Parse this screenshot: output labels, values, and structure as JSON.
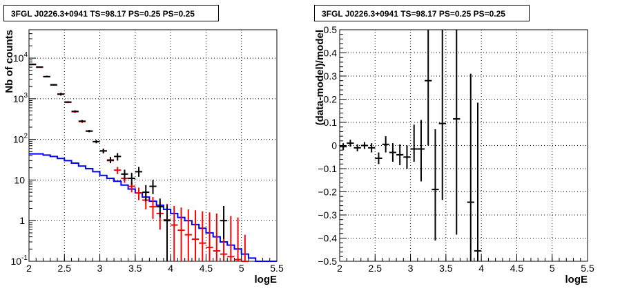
{
  "chart_data": [
    {
      "type": "line",
      "title": "3FGL J0226.3+0941 TS=98.17 PS=0.25 PS=0.25",
      "xlabel": "logE",
      "ylabel": "Nb of counts",
      "xlim": [
        2,
        5.5
      ],
      "ylim": [
        0.1,
        50000
      ],
      "yscale": "log",
      "grid": true,
      "x_ticks": [
        "2",
        "2.5",
        "3",
        "3.5",
        "4",
        "4.5",
        "5",
        "5.5"
      ],
      "y_ticks": [
        {
          "value": 0.1,
          "label": "10",
          "exp": "-1"
        },
        {
          "value": 1,
          "label": "1",
          "exp": ""
        },
        {
          "value": 10,
          "label": "10",
          "exp": ""
        },
        {
          "value": 100,
          "label": "10",
          "exp": "2"
        },
        {
          "value": 1000,
          "label": "10",
          "exp": "3"
        },
        {
          "value": 10000,
          "label": "10",
          "exp": "4"
        }
      ],
      "series": [
        {
          "color": "#0000ff",
          "style": "step",
          "bin_edges": [
            2.0,
            2.1,
            2.2,
            2.3,
            2.4,
            2.5,
            2.6,
            2.7,
            2.8,
            2.9,
            3.0,
            3.1,
            3.2,
            3.3,
            3.4,
            3.5,
            3.6,
            3.7,
            3.8,
            3.9,
            4.0,
            4.1,
            4.2,
            4.3,
            4.4,
            4.5,
            4.6,
            4.7,
            4.8,
            4.9,
            5.0,
            5.1,
            5.2,
            5.3,
            5.4,
            5.5
          ],
          "values": [
            44,
            44,
            41,
            38,
            34,
            30,
            26,
            22,
            19,
            16,
            13,
            11,
            9.3,
            7.5,
            6.0,
            4.8,
            3.8,
            3.0,
            2.4,
            1.9,
            1.5,
            1.2,
            1.0,
            0.8,
            0.65,
            0.5,
            0.4,
            0.3,
            0.25,
            0.2,
            0.15,
            0.12,
            0.1,
            0.1,
            0.1
          ]
        },
        {
          "color": "#ff0000",
          "style": "errorbar",
          "x": [
            2.05,
            2.15,
            2.25,
            2.35,
            2.45,
            2.55,
            2.65,
            2.75,
            2.85,
            2.95,
            3.05,
            3.15,
            3.25,
            3.35,
            3.45,
            3.55,
            3.65,
            3.75,
            3.85,
            3.95,
            4.05,
            4.15,
            4.25,
            4.35,
            4.45,
            4.55,
            4.65,
            4.75,
            4.85,
            4.95,
            5.05
          ],
          "y": [
            7000,
            6000,
            3500,
            2200,
            1300,
            820,
            480,
            275,
            160,
            88,
            52,
            30,
            17.5,
            11,
            7.0,
            4.8,
            3.2,
            2.2,
            1.5,
            1.05,
            0.78,
            0.58,
            0.45,
            0.35,
            0.28,
            0.22,
            0.18,
            0.15,
            0.13,
            0.11,
            0.1
          ],
          "y_low": [
            6800,
            5800,
            3400,
            2100,
            1200,
            780,
            450,
            255,
            150,
            82,
            45,
            26,
            14,
            8.5,
            5.0,
            3.2,
            1.9,
            1.1,
            0.6,
            0.2,
            0.1,
            0.1,
            0.1,
            0.1,
            0.1,
            0.1,
            0.1,
            0.1,
            0.1,
            0.1,
            0.1
          ],
          "y_high": [
            7300,
            6200,
            3700,
            2300,
            1400,
            860,
            510,
            300,
            170,
            96,
            59,
            35,
            21,
            14,
            9.0,
            6.5,
            5.0,
            3.8,
            3.0,
            2.6,
            2.3,
            2.1,
            1.9,
            1.8,
            1.7,
            1.6,
            1.5,
            1.4,
            1.3,
            1.2,
            0.45
          ]
        },
        {
          "color": "#000000",
          "style": "errorbar",
          "x": [
            2.05,
            2.15,
            2.25,
            2.35,
            2.45,
            2.55,
            2.65,
            2.75,
            2.85,
            2.95,
            3.05,
            3.15,
            3.25,
            3.35,
            3.45,
            3.55,
            3.65,
            3.75,
            3.85,
            3.95,
            4.75
          ],
          "y": [
            7000,
            6000,
            3500,
            2200,
            1300,
            830,
            490,
            280,
            160,
            88,
            52,
            31,
            38,
            14,
            11,
            16,
            5,
            7,
            2.2,
            1.0,
            1.0
          ],
          "y_low": [
            6800,
            5800,
            3400,
            2100,
            1200,
            790,
            460,
            260,
            150,
            80,
            46,
            26,
            30,
            10,
            7.5,
            12,
            3,
            4.5,
            1.2,
            0.1,
            0.35
          ],
          "y_high": [
            7300,
            6200,
            3700,
            2300,
            1400,
            870,
            520,
            300,
            170,
            97,
            59,
            37,
            46,
            18,
            15,
            21,
            7.5,
            10,
            3.5,
            2.4,
            2.3
          ]
        }
      ]
    },
    {
      "type": "scatter",
      "title": "3FGL J0226.3+0941 TS=98.17 PS=0.25 PS=0.25",
      "xlabel": "logE",
      "ylabel": "(data-model)/model",
      "xlim": [
        2,
        5.5
      ],
      "ylim": [
        -0.5,
        0.5
      ],
      "grid": true,
      "x_ticks": [
        "2",
        "2.5",
        "3",
        "3.5",
        "4",
        "4.5",
        "5",
        "5.5"
      ],
      "y_ticks": [
        "-0.5",
        "-0.4",
        "-0.3",
        "-0.2",
        "-0.1",
        "0",
        "0.1",
        "0.2",
        "0.3",
        "0.4",
        "0.5"
      ],
      "series": [
        {
          "color": "#000000",
          "style": "errorbar",
          "x": [
            2.05,
            2.15,
            2.25,
            2.35,
            2.45,
            2.55,
            2.65,
            2.75,
            2.85,
            2.95,
            3.05,
            3.15,
            3.25,
            3.35,
            3.45,
            3.65,
            3.85,
            3.95
          ],
          "y": [
            -0.005,
            0.01,
            -0.01,
            0.0,
            -0.01,
            -0.055,
            0.005,
            -0.03,
            -0.04,
            -0.05,
            -0.015,
            -0.015,
            0.28,
            -0.19,
            0.095,
            0.115,
            -0.245,
            -0.455
          ],
          "y_low": [
            -0.02,
            -0.005,
            -0.025,
            -0.015,
            -0.03,
            -0.08,
            -0.03,
            -0.07,
            -0.085,
            -0.1,
            -0.07,
            -0.155,
            0.0,
            -0.41,
            -0.235,
            -0.385,
            -0.5,
            -0.5
          ],
          "y_high": [
            0.01,
            0.025,
            0.005,
            0.015,
            0.01,
            -0.03,
            0.04,
            0.01,
            0.005,
            0.0,
            0.09,
            0.11,
            0.5,
            0.07,
            0.5,
            0.5,
            0.31,
            0.185
          ]
        }
      ]
    }
  ]
}
